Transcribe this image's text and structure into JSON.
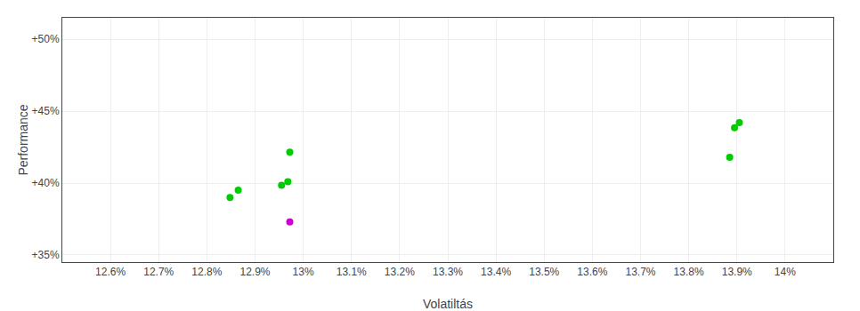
{
  "chart_data": {
    "type": "scatter",
    "xlabel": "Volatiltás",
    "ylabel": "Performance",
    "xlim": [
      12.5,
      14.1
    ],
    "ylim": [
      34.5,
      51.5
    ],
    "xticks": [
      {
        "value": 12.6,
        "label": "12.6%"
      },
      {
        "value": 12.7,
        "label": "12.7%"
      },
      {
        "value": 12.8,
        "label": "12.8%"
      },
      {
        "value": 12.9,
        "label": "12.9%"
      },
      {
        "value": 13.0,
        "label": "13%"
      },
      {
        "value": 13.1,
        "label": "13.1%"
      },
      {
        "value": 13.2,
        "label": "13.2%"
      },
      {
        "value": 13.3,
        "label": "13.3%"
      },
      {
        "value": 13.4,
        "label": "13.4%"
      },
      {
        "value": 13.5,
        "label": "13.5%"
      },
      {
        "value": 13.6,
        "label": "13.6%"
      },
      {
        "value": 13.7,
        "label": "13.7%"
      },
      {
        "value": 13.8,
        "label": "13.8%"
      },
      {
        "value": 13.9,
        "label": "13.9%"
      },
      {
        "value": 14.0,
        "label": "14%"
      }
    ],
    "yticks": [
      {
        "value": 35,
        "label": "+35%"
      },
      {
        "value": 40,
        "label": "+40%"
      },
      {
        "value": 45,
        "label": "+45%"
      },
      {
        "value": 50,
        "label": "+50%"
      }
    ],
    "grid": true,
    "series": [
      {
        "color": "#00cc00",
        "x": [
          12.848,
          12.865,
          12.955,
          12.968,
          12.972,
          13.885,
          13.895,
          13.905
        ],
        "values": [
          39.0,
          39.5,
          39.85,
          40.1,
          42.15,
          41.8,
          43.85,
          44.2
        ]
      },
      {
        "color": "#cc00cc",
        "x": [
          12.972
        ],
        "values": [
          37.3
        ]
      }
    ]
  }
}
